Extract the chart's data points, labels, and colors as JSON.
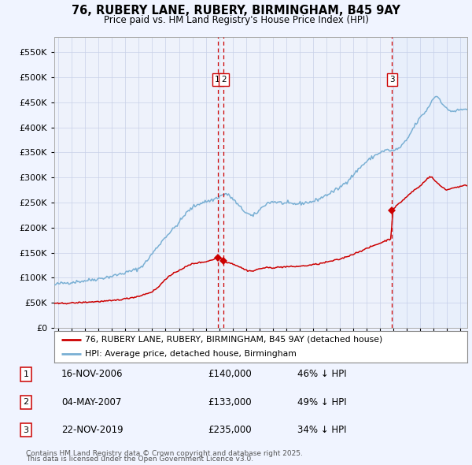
{
  "title": "76, RUBERY LANE, RUBERY, BIRMINGHAM, B45 9AY",
  "subtitle": "Price paid vs. HM Land Registry's House Price Index (HPI)",
  "fig_bg_color": "#f0f4ff",
  "plot_bg_color": "#eef2fb",
  "grid_color": "#c8d0e8",
  "ylim": [
    0,
    580000
  ],
  "yticks": [
    0,
    50000,
    100000,
    150000,
    200000,
    250000,
    300000,
    350000,
    400000,
    450000,
    500000,
    550000
  ],
  "xlim_start": 1994.7,
  "xlim_end": 2025.5,
  "hpi_color": "#7ab0d4",
  "price_color": "#cc0000",
  "vline_color": "#cc0000",
  "legend_label_price": "76, RUBERY LANE, RUBERY, BIRMINGHAM, B45 9AY (detached house)",
  "legend_label_hpi": "HPI: Average price, detached house, Birmingham",
  "transactions": [
    {
      "num": 1,
      "date": "16-NOV-2006",
      "price": 140000,
      "pct": "46% ↓ HPI",
      "x": 2006.88
    },
    {
      "num": 2,
      "date": "04-MAY-2007",
      "price": 133000,
      "pct": "49% ↓ HPI",
      "x": 2007.34
    },
    {
      "num": 3,
      "date": "22-NOV-2019",
      "price": 235000,
      "pct": "34% ↓ HPI",
      "x": 2019.89
    }
  ],
  "footnote1": "Contains HM Land Registry data © Crown copyright and database right 2025.",
  "footnote2": "This data is licensed under the Open Government Licence v3.0."
}
